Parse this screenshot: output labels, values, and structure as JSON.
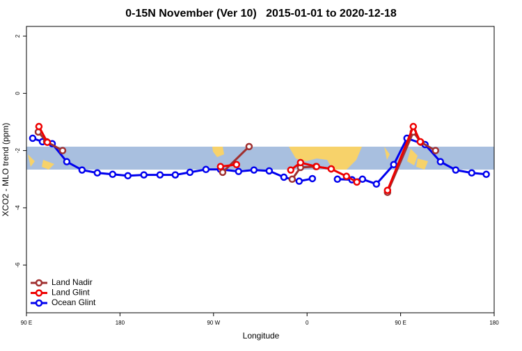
{
  "chart_data": {
    "type": "line",
    "title": "0-15N November (Ver 10)   2015-01-01 to 2020-12-18",
    "x_label": "Longitude",
    "y_label": "XCO2 - MLO trend (ppm)",
    "xlim": [
      90,
      540
    ],
    "ylim": [
      -7.67,
      2.34
    ],
    "xticks": [
      {
        "value": 90,
        "label": "90 E"
      },
      {
        "value": 180,
        "label": "180"
      },
      {
        "value": 270,
        "label": "90 W"
      },
      {
        "value": 360,
        "label": "0"
      },
      {
        "value": 450,
        "label": "90 E"
      },
      {
        "value": 540,
        "label": "180"
      }
    ],
    "yticks": [
      2,
      0,
      -2,
      -4,
      -6
    ],
    "legend": "bottom-left",
    "series": [
      {
        "name": "Ocean Glint",
        "color": "#0000ee",
        "x": [
          96,
          105.4,
          114.8,
          128.8,
          143.5,
          158.2,
          172.9,
          187.6,
          203,
          218.5,
          233.2,
          247.3,
          262.7,
          276.7,
          294.1,
          308.9,
          323.6,
          337.7,
          352.4,
          365.1,
          null,
          389.2,
          403.2,
          413.3,
          426.7,
          443.4,
          456.1,
          473.5,
          488.3,
          503,
          518.4,
          532.4
        ],
        "values": [
          -1.57,
          -1.69,
          -1.76,
          -2.39,
          -2.68,
          -2.78,
          -2.83,
          -2.88,
          -2.85,
          -2.85,
          -2.85,
          -2.76,
          -2.66,
          -2.66,
          -2.73,
          -2.68,
          -2.71,
          -2.93,
          -3.07,
          -2.98,
          null,
          -3.0,
          -3.02,
          -3.0,
          -3.17,
          -2.49,
          -1.57,
          -1.79,
          -2.39,
          -2.68,
          -2.78,
          -2.83
        ]
      },
      {
        "name": "Land Nadir",
        "color": "#a03030",
        "x": [
          101.4,
          109.4,
          124.8,
          null,
          278.8,
          304.2,
          null,
          345.7,
          353.7,
          368.5,
          383.2,
          null,
          437.4,
          462.2,
          469.5,
          483.6
        ],
        "values": [
          -1.35,
          -1.69,
          -2.0,
          null,
          -2.76,
          -1.86,
          null,
          -3.0,
          -2.59,
          -2.56,
          -2.64,
          null,
          -3.46,
          -1.35,
          -1.71,
          -2.0
        ]
      },
      {
        "name": "Land Glint",
        "color": "#ee0000",
        "x": [
          102.0,
          110.1,
          null,
          276.7,
          292.1,
          null,
          344.3,
          353.7,
          369.1,
          383.2,
          397.9,
          407.9,
          null,
          437.4,
          462.2,
          468.9
        ],
        "values": [
          -1.16,
          -1.71,
          null,
          -2.56,
          -2.49,
          null,
          -2.68,
          -2.42,
          -2.56,
          -2.64,
          -2.9,
          -3.1,
          null,
          -3.39,
          -1.16,
          -1.69
        ]
      }
    ]
  }
}
